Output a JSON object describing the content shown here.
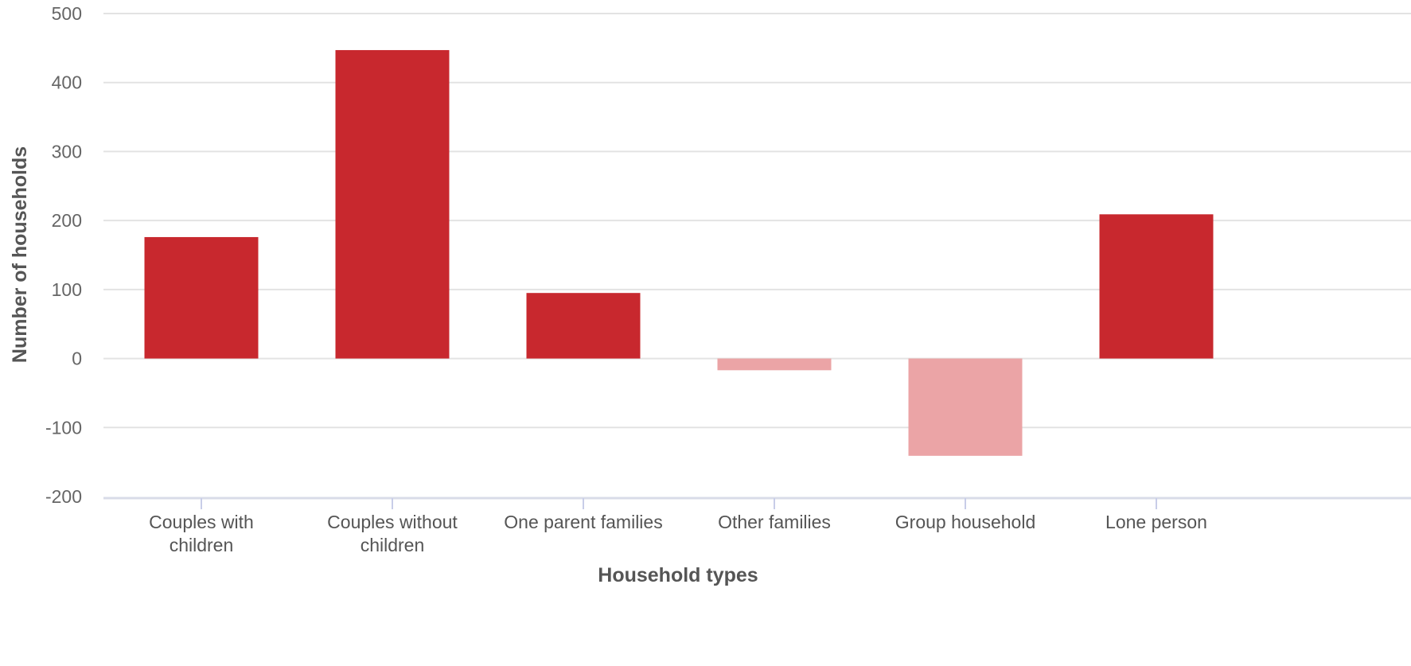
{
  "chart_data": {
    "type": "bar",
    "title": "",
    "xlabel": "Household types",
    "ylabel": "Number of households",
    "categories": [
      [
        "Couples with",
        "children"
      ],
      [
        "Couples without",
        "children"
      ],
      [
        "One parent families"
      ],
      [
        "Other families"
      ],
      [
        "Group household"
      ],
      [
        "Lone person"
      ]
    ],
    "values": [
      176,
      447,
      95,
      -17,
      -141,
      209
    ],
    "ylim": [
      -200,
      500
    ],
    "yticks": [
      "500",
      "400",
      "300",
      "200",
      "100",
      "0",
      "-100",
      "-200"
    ],
    "grid": true,
    "colors": {
      "positive": "#c8282e",
      "negative": "#eba4a6"
    }
  }
}
